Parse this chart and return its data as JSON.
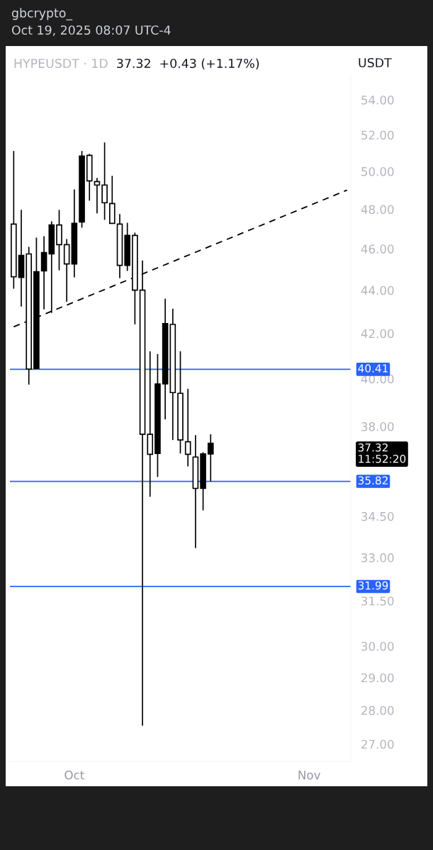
{
  "chart_data": {
    "type": "candlestick",
    "title": "HYPEUSDT · 1D",
    "subtitle": "37.32  +0.43 (+1.17%)",
    "ylabel": "USDT",
    "annotations": [
      "gbcrypto_",
      "Oct 19, 2025 08:07 UTC-4",
      "37.32\n11:52:20"
    ],
    "x": [
      "2025-09-23",
      "2025-09-24",
      "2025-09-25",
      "2025-09-26",
      "2025-09-27",
      "2025-09-28",
      "2025-09-29",
      "2025-09-30",
      "2025-10-01",
      "2025-10-02",
      "2025-10-03",
      "2025-10-04",
      "2025-10-05",
      "2025-10-06",
      "2025-10-07",
      "2025-10-08",
      "2025-10-09",
      "2025-10-10",
      "2025-10-11",
      "2025-10-12",
      "2025-10-13",
      "2025-10-14",
      "2025-10-15",
      "2025-10-16",
      "2025-10-17",
      "2025-10-18",
      "2025-10-19"
    ],
    "ohlc": [
      [
        47.24,
        51.11,
        44.07,
        44.64
      ],
      [
        44.61,
        47.97,
        43.23,
        45.68
      ],
      [
        45.75,
        46.1,
        39.75,
        40.42
      ],
      [
        40.45,
        46.56,
        40.45,
        44.88
      ],
      [
        44.92,
        46.63,
        43.1,
        45.82
      ],
      [
        45.75,
        47.38,
        42.94,
        47.2
      ],
      [
        47.2,
        47.97,
        44.95,
        46.21
      ],
      [
        46.21,
        46.49,
        43.46,
        45.26
      ],
      [
        45.26,
        49.04,
        44.61,
        47.28
      ],
      [
        47.35,
        51.11,
        47.06,
        50.83
      ],
      [
        50.87,
        50.95,
        48.45,
        49.49
      ],
      [
        49.45,
        49.65,
        47.79,
        49.27
      ],
      [
        49.27,
        51.58,
        47.46,
        48.34
      ],
      [
        48.3,
        49.76,
        47.28,
        47.28
      ],
      [
        47.24,
        47.75,
        44.57,
        45.19
      ],
      [
        45.19,
        47.31,
        44.92,
        46.67
      ],
      [
        46.67,
        46.81,
        42.41,
        44.0
      ],
      [
        44.0,
        45.43,
        27.54,
        37.68
      ],
      [
        37.68,
        41.2,
        35.23,
        36.88
      ],
      [
        36.91,
        41.08,
        35.99,
        39.78
      ],
      [
        39.78,
        43.6,
        38.29,
        42.45
      ],
      [
        42.41,
        43.13,
        37.45,
        39.41
      ],
      [
        39.38,
        41.2,
        36.91,
        37.45
      ],
      [
        37.38,
        39.57,
        36.4,
        36.88
      ],
      [
        36.77,
        37.65,
        33.34,
        35.55
      ],
      [
        35.55,
        36.96,
        34.72,
        36.89
      ],
      [
        36.89,
        37.68,
        35.82,
        37.32
      ]
    ],
    "series": [
      {
        "type": "line",
        "color": "#000000",
        "line_style": "dashed",
        "x": [
          "2025-09-23",
          "2025-11-06"
        ],
        "values": [
          42.3,
          49.0
        ]
      }
    ],
    "ref_lines": [
      {
        "axis": "y",
        "value": 40.41,
        "label": "40.41",
        "color": "#2962ff"
      },
      {
        "axis": "y",
        "value": 35.82,
        "label": "35.82",
        "color": "#2962ff"
      },
      {
        "axis": "y",
        "value": 31.99,
        "label": "31.99",
        "color": "#2962ff"
      }
    ],
    "log": true,
    "xlim": [
      "2025-09-22T12:00",
      "2025-11-06T12:00"
    ],
    "xticks": [
      {
        "value": "2025-10-01",
        "label": "Oct"
      },
      {
        "value": "2025-11-01",
        "label": "Nov"
      }
    ],
    "ylim": [
      26.5,
      55.5
    ],
    "yticks": [
      {
        "value": 54,
        "label": "54.00"
      },
      {
        "value": 52,
        "label": "52.00"
      },
      {
        "value": 50,
        "label": "50.00"
      },
      {
        "value": 48,
        "label": "48.00"
      },
      {
        "value": 46,
        "label": "46.00"
      },
      {
        "value": 44,
        "label": "44.00"
      },
      {
        "value": 42,
        "label": "42.00"
      },
      {
        "value": 40,
        "label": "40.00"
      },
      {
        "value": 38,
        "label": "38.00"
      },
      {
        "value": 34.5,
        "label": "34.50"
      },
      {
        "value": 33,
        "label": "33.00"
      },
      {
        "value": 31.5,
        "label": "31.50"
      },
      {
        "value": 30,
        "label": "30.00"
      },
      {
        "value": 29,
        "label": "29.00"
      },
      {
        "value": 28,
        "label": "28.00"
      },
      {
        "value": 27,
        "label": "27.00"
      }
    ],
    "grid": false,
    "legend": false,
    "marker": "none"
  }
}
